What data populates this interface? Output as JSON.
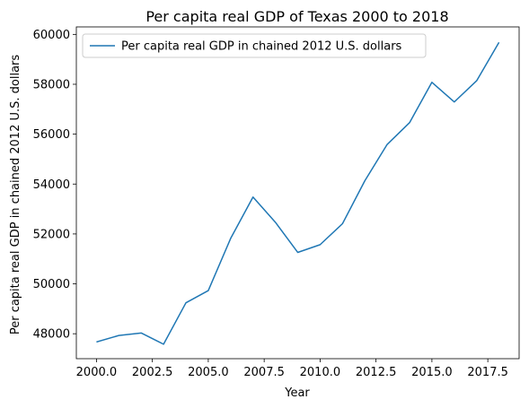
{
  "chart_data": {
    "type": "line",
    "title": "Per capita real GDP of Texas 2000 to 2018",
    "xlabel": "Year",
    "ylabel": "Per capita real GDP in chained 2012 U.S. dollars",
    "x": [
      2000,
      2001,
      2002,
      2003,
      2004,
      2005,
      2006,
      2007,
      2008,
      2009,
      2010,
      2011,
      2012,
      2013,
      2014,
      2015,
      2016,
      2017,
      2018
    ],
    "series": [
      {
        "name": "Per capita real GDP in chained 2012 U.S. dollars",
        "color": "#1f77b4",
        "values": [
          47670,
          47930,
          48030,
          47580,
          49240,
          49730,
          51820,
          53480,
          52470,
          51260,
          51570,
          52410,
          54130,
          55590,
          56460,
          58080,
          57290,
          58140,
          59680
        ]
      }
    ],
    "xlim": [
      1999.1,
      2018.9
    ],
    "ylim": [
      47000,
      60300
    ],
    "xticks": [
      2000.0,
      2002.5,
      2005.0,
      2007.5,
      2010.0,
      2012.5,
      2015.0,
      2017.5
    ],
    "xtick_labels": [
      "2000.0",
      "2002.5",
      "2005.0",
      "2007.5",
      "2010.0",
      "2012.5",
      "2015.0",
      "2017.5"
    ],
    "yticks": [
      48000,
      50000,
      52000,
      54000,
      56000,
      58000,
      60000
    ],
    "ytick_labels": [
      "48000",
      "50000",
      "52000",
      "54000",
      "56000",
      "58000",
      "60000"
    ],
    "grid": false,
    "legend_position": "top-left"
  }
}
